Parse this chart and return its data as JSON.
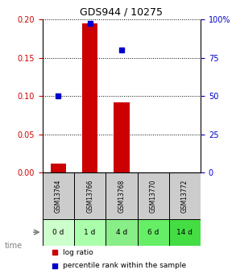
{
  "title": "GDS944 / 10275",
  "samples": [
    "GSM13764",
    "GSM13766",
    "GSM13768",
    "GSM13770",
    "GSM13772"
  ],
  "time_labels": [
    "0 d",
    "1 d",
    "4 d",
    "6 d",
    "14 d"
  ],
  "log_ratio": [
    0.012,
    0.195,
    0.092,
    0.0,
    0.0
  ],
  "percentile_rank": [
    50.0,
    97.5,
    80.0,
    null,
    null
  ],
  "ylim_left": [
    0,
    0.2
  ],
  "ylim_right": [
    0,
    100
  ],
  "yticks_left": [
    0,
    0.05,
    0.1,
    0.15,
    0.2
  ],
  "yticks_right": [
    0,
    25,
    50,
    75,
    100
  ],
  "bar_color": "#cc0000",
  "dot_color": "#0000cc",
  "sample_bg_color": "#cccccc",
  "time_bg_colors": [
    "#ccffcc",
    "#aaffaa",
    "#88ee88",
    "#66ee66",
    "#44dd44"
  ],
  "grid_color": "#000000",
  "title_color": "#000000",
  "left_axis_color": "#cc0000",
  "right_axis_color": "#0000cc",
  "bar_width": 0.5,
  "legend_red_label": "log ratio",
  "legend_blue_label": "percentile rank within the sample"
}
